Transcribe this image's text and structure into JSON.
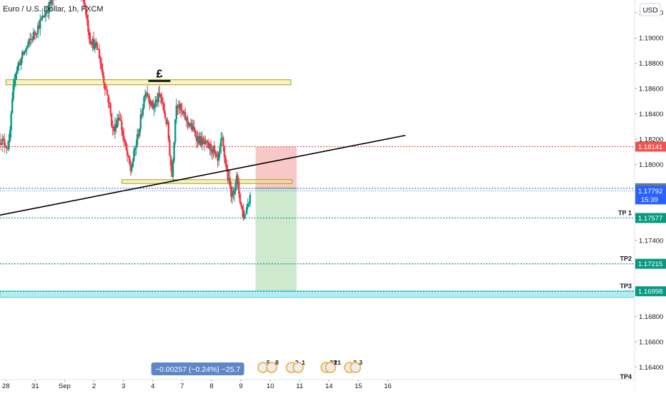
{
  "header": {
    "symbol_title": "Euro / U.S. Dollar, 1h, FXCM"
  },
  "currency_button": "USD",
  "chart_data": {
    "type": "candlestick",
    "symbol": "Euro / U.S. Dollar, 1h, FXCM",
    "currency": "USD",
    "ylim": [
      1.163,
      1.193
    ],
    "y_ticks": [
      {
        "value": 1.192,
        "label": "1.19200"
      },
      {
        "value": 1.19,
        "label": "1.19000"
      },
      {
        "value": 1.188,
        "label": "1.18800"
      },
      {
        "value": 1.186,
        "label": "1.18600"
      },
      {
        "value": 1.184,
        "label": "1.18400"
      },
      {
        "value": 1.182,
        "label": "1.18200"
      },
      {
        "value": 1.18,
        "label": "1.18000"
      },
      {
        "value": 1.178,
        "label": "1.17800"
      },
      {
        "value": 1.176,
        "label": "1.17600"
      },
      {
        "value": 1.174,
        "label": "1.17400"
      },
      {
        "value": 1.172,
        "label": "1.17200"
      },
      {
        "value": 1.17,
        "label": "1.17000"
      },
      {
        "value": 1.168,
        "label": "1.16800"
      },
      {
        "value": 1.166,
        "label": "1.16600"
      },
      {
        "value": 1.164,
        "label": "1.16400"
      }
    ],
    "x_range": [
      0,
      21.6
    ],
    "x_ticks": [
      {
        "pos": 0.2,
        "label": "28"
      },
      {
        "pos": 1.2,
        "label": "31"
      },
      {
        "pos": 2.2,
        "label": "Sep"
      },
      {
        "pos": 3.2,
        "label": "2"
      },
      {
        "pos": 4.2,
        "label": "3"
      },
      {
        "pos": 5.2,
        "label": "4"
      },
      {
        "pos": 6.2,
        "label": "7"
      },
      {
        "pos": 7.2,
        "label": "8"
      },
      {
        "pos": 8.2,
        "label": "9"
      },
      {
        "pos": 9.2,
        "label": "10"
      },
      {
        "pos": 10.2,
        "label": "11"
      },
      {
        "pos": 11.2,
        "label": "14"
      },
      {
        "pos": 12.2,
        "label": "15"
      },
      {
        "pos": 13.2,
        "label": "16"
      }
    ],
    "price_path": [
      [
        0.0,
        1.182
      ],
      [
        0.3,
        1.1814
      ],
      [
        0.5,
        1.1872
      ],
      [
        0.85,
        1.189
      ],
      [
        1.2,
        1.1905
      ],
      [
        1.55,
        1.192
      ],
      [
        1.9,
        1.1935
      ],
      [
        2.1,
        1.194
      ],
      [
        2.4,
        1.1938
      ],
      [
        2.85,
        1.1932
      ],
      [
        3.05,
        1.19
      ],
      [
        3.35,
        1.189
      ],
      [
        3.5,
        1.187
      ],
      [
        3.7,
        1.185
      ],
      [
        3.85,
        1.1825
      ],
      [
        4.05,
        1.184
      ],
      [
        4.25,
        1.1815
      ],
      [
        4.45,
        1.1795
      ],
      [
        4.75,
        1.183
      ],
      [
        4.95,
        1.186
      ],
      [
        5.2,
        1.1845
      ],
      [
        5.45,
        1.1855
      ],
      [
        5.7,
        1.183
      ],
      [
        5.85,
        1.179
      ],
      [
        6.0,
        1.185
      ],
      [
        6.2,
        1.184
      ],
      [
        6.5,
        1.183
      ],
      [
        6.75,
        1.182
      ],
      [
        7.0,
        1.1815
      ],
      [
        7.25,
        1.1812
      ],
      [
        7.4,
        1.18
      ],
      [
        7.55,
        1.182
      ],
      [
        7.75,
        1.179
      ],
      [
        7.9,
        1.1775
      ],
      [
        8.05,
        1.179
      ],
      [
        8.2,
        1.1768
      ],
      [
        8.3,
        1.1758
      ],
      [
        8.5,
        1.1775
      ],
      [
        8.55,
        1.1779
      ]
    ],
    "current_price": {
      "value": 1.17792,
      "label": "1.17792",
      "countdown": "15:39"
    },
    "horizontal_levels": [
      {
        "value": 1.18141,
        "label": "1.18141",
        "color": "#ef5350"
      },
      {
        "value": 1.17812,
        "label": "1.17812",
        "color": "#607d8b"
      },
      {
        "value": 1.17577,
        "label": "1.17577",
        "name": "TP 1",
        "color": "#089981"
      },
      {
        "value": 1.17215,
        "label": "1.17215",
        "name": "TP2",
        "color": "#089981"
      },
      {
        "value": 1.16998,
        "label": "1.16998",
        "name": "TP3",
        "color": "#089981"
      }
    ],
    "tp4_label": "TP4",
    "annotations": {
      "resistance_zone": {
        "x1": 0.2,
        "x2": 9.9,
        "y1": 1.1867,
        "y2": 1.1863,
        "color": "#f3e98a"
      },
      "support_zone": {
        "x1": 4.15,
        "x2": 9.95,
        "y1": 1.1788,
        "y2": 1.1785,
        "color": "#f3e98a"
      },
      "trendline": {
        "x1": 0.0,
        "x2": 13.8,
        "y1": 1.176,
        "y2": 1.1823,
        "color": "#000000"
      },
      "symbol_mark": {
        "x1": 5.05,
        "x2": 5.8,
        "y": 1.1866,
        "text": "£"
      },
      "tp3_band": {
        "y1": 1.17,
        "y2": 1.1695,
        "color": "#b2ebf2"
      },
      "short_position": {
        "x1": 8.7,
        "x2": 10.1,
        "entry": 1.17812,
        "stop": 1.18141,
        "target": 1.16998,
        "risk_color": "#f8c8c8",
        "reward_color": "#cfe9cf",
        "label": "−0.00257 (−0.24%) −25.7"
      }
    },
    "events": [
      {
        "x": 8.95,
        "count": "5"
      },
      {
        "x": 9.25,
        "count": "8"
      },
      {
        "x": 9.92,
        "count": "2"
      },
      {
        "x": 10.15,
        "count": "1"
      },
      {
        "x": 11.1,
        "count": "33"
      },
      {
        "x": 11.25,
        "count": "21"
      },
      {
        "x": 11.9,
        "count": "2"
      },
      {
        "x": 12.1,
        "count": "3"
      }
    ]
  }
}
